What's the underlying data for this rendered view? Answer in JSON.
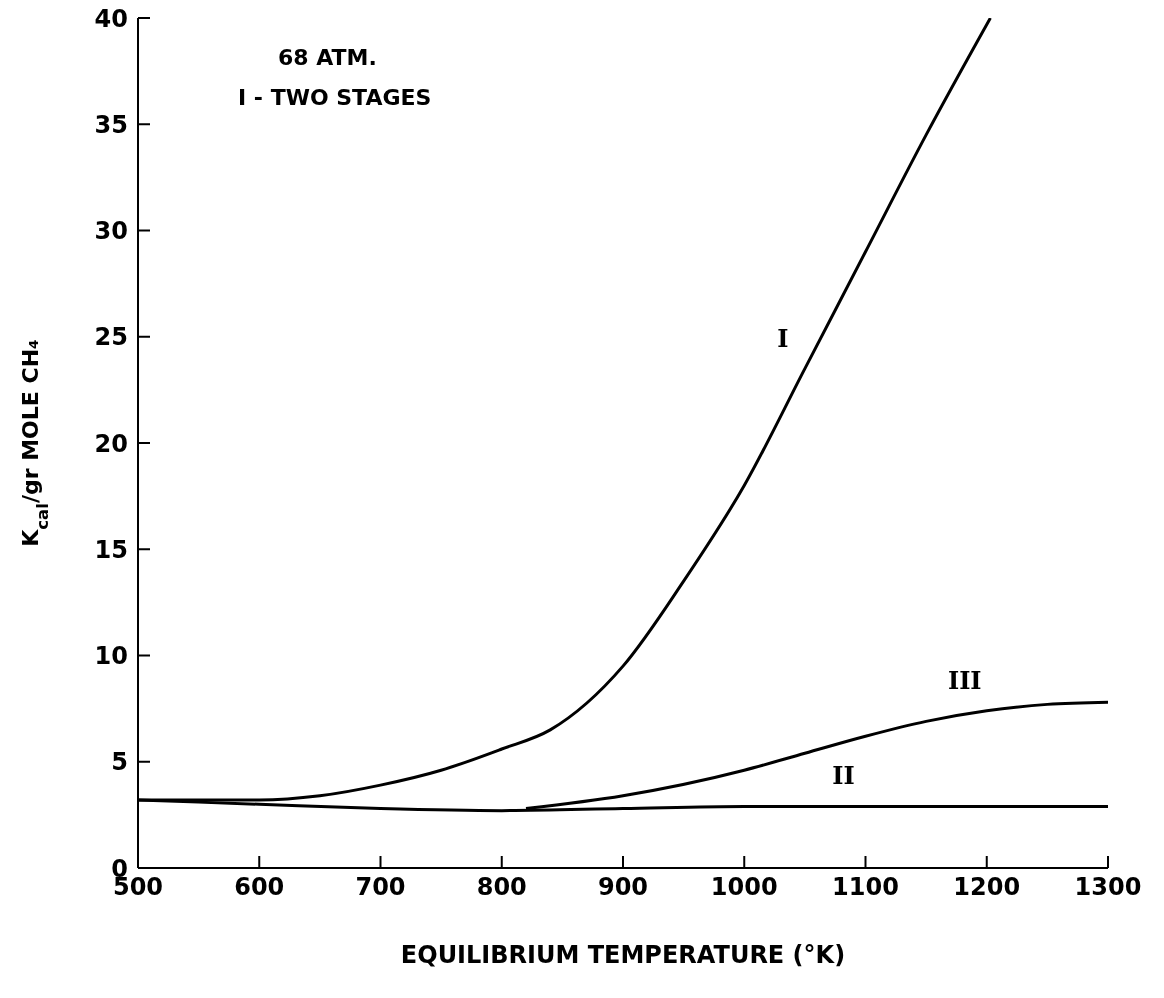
{
  "chart_data": {
    "type": "line",
    "xlabel": "EQUILIBRIUM TEMPERATURE (°K)",
    "ylabel": "K$_{cal}$/gr MOLE CH₄",
    "xlim": [
      500,
      1300
    ],
    "xticks": [
      500,
      600,
      700,
      800,
      900,
      1000,
      1100,
      1200,
      1300
    ],
    "ylim": [
      0,
      40
    ],
    "yticks": [
      0,
      5,
      10,
      15,
      20,
      25,
      30,
      35,
      40
    ],
    "marker": "none",
    "series": [
      {
        "name": "I",
        "color": "#000000",
        "x": [
          500,
          600,
          650,
          700,
          750,
          800,
          840,
          900,
          950,
          1000,
          1050,
          1100,
          1150,
          1203
        ],
        "values": [
          3.2,
          3.2,
          3.4,
          3.9,
          4.6,
          5.6,
          6.5,
          9.5,
          13.5,
          18,
          23.5,
          29,
          34.5,
          40
        ]
      },
      {
        "name": "II",
        "color": "#000000",
        "x": [
          500,
          600,
          700,
          800,
          900,
          1000,
          1100,
          1200,
          1300
        ],
        "values": [
          3.2,
          3.0,
          2.8,
          2.7,
          2.8,
          2.9,
          2.9,
          2.9,
          2.9
        ]
      },
      {
        "name": "III",
        "color": "#000000",
        "x": [
          820,
          900,
          1000,
          1050,
          1100,
          1150,
          1200,
          1250,
          1300
        ],
        "values": [
          2.8,
          3.4,
          4.6,
          5.4,
          6.2,
          6.9,
          7.4,
          7.7,
          7.8
        ]
      }
    ],
    "annotations": [
      "68 ATM.",
      "I - TWO STAGES"
    ]
  }
}
